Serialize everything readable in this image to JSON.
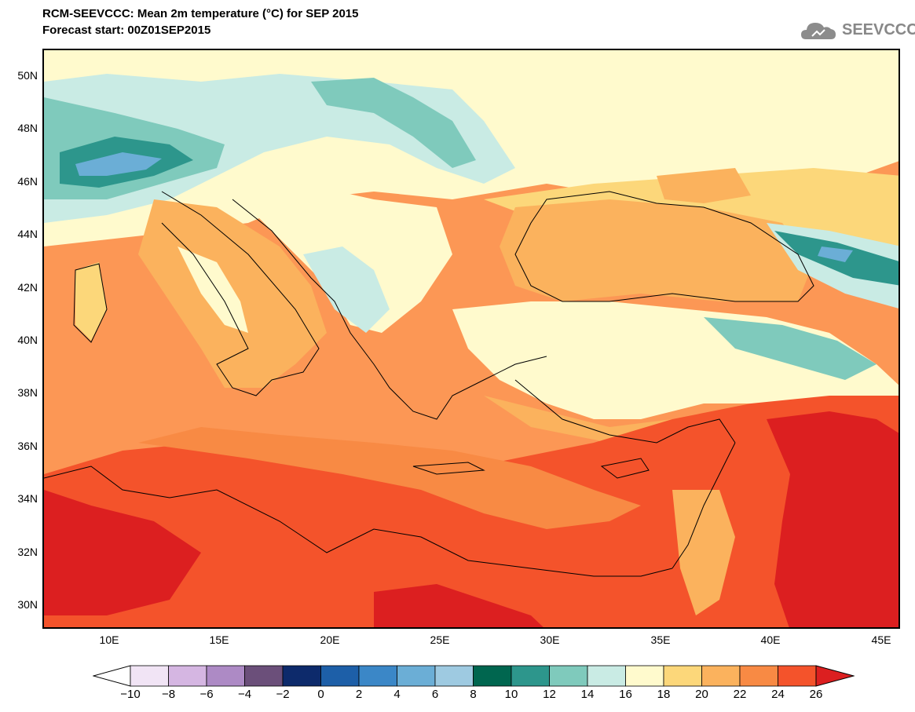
{
  "title": {
    "line1": "RCM-SEEVCCC: Mean 2m temperature (°C) for SEP 2015",
    "line2": "Forecast start: 00Z01SEP2015"
  },
  "logo": {
    "text": "SEEVCCC",
    "icon": "cloud-icon"
  },
  "axes": {
    "lat_labels": [
      "50N",
      "48N",
      "46N",
      "44N",
      "42N",
      "40N",
      "38N",
      "36N",
      "34N",
      "32N",
      "30N"
    ],
    "lon_labels": [
      "10E",
      "15E",
      "20E",
      "25E",
      "30E",
      "35E",
      "40E",
      "45E"
    ]
  },
  "colorbar": {
    "labels": [
      "−10",
      "−8",
      "−6",
      "−4",
      "−2",
      "0",
      "2",
      "4",
      "6",
      "8",
      "10",
      "12",
      "14",
      "16",
      "18",
      "20",
      "22",
      "24",
      "26"
    ],
    "colors": [
      "#f1e4f5",
      "#d5b6e2",
      "#ad8ac5",
      "#6b4f7a",
      "#0d2a6b",
      "#1d5fa8",
      "#3b87c7",
      "#6baed6",
      "#9ecae1",
      "#00664f",
      "#2d968c",
      "#7fcabc",
      "#c9ebe4",
      "#fffacd",
      "#fcd77a",
      "#fbb25d",
      "#f88a44",
      "#f4532b",
      "#dc1f20"
    ],
    "under_color": "#ffffff",
    "over_color": "#dc1f20"
  },
  "chart_data": {
    "type": "heatmap",
    "title": "RCM-SEEVCCC: Mean 2m temperature (°C) for SEP 2015",
    "subtitle": "Forecast start: 00Z01SEP2015",
    "xlim": [
      7,
      46
    ],
    "ylim": [
      29,
      51
    ],
    "levels": [
      -10,
      -8,
      -6,
      -4,
      -2,
      0,
      2,
      4,
      6,
      8,
      10,
      12,
      14,
      16,
      18,
      20,
      22,
      24,
      26
    ]
  }
}
